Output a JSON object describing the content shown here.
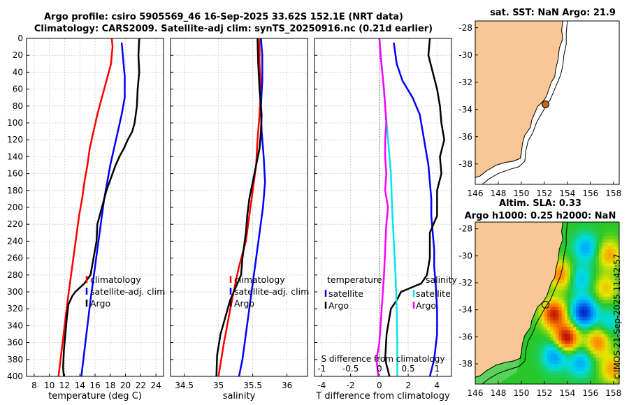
{
  "header": {
    "line1": "Argo profile: csiro 5905569_46 16-Sep-2025 33.62S 152.1E (NRT data)",
    "line2": "Climatology: CARS2009. Satellite-adj clim: synTS_20250916.nc (0.21d earlier)"
  },
  "stamp": "©IMOS 21-Sep-2025 11:42:57",
  "colors": {
    "argo": "#000000",
    "climatology": "#ff0000",
    "satellite": "#0000ff",
    "temperature_diff": "#ff00ff",
    "salinity_diff": "#00e5ee",
    "land": "#f9c796",
    "frame": "#000000"
  },
  "chart_data": [
    {
      "type": "line",
      "title": "",
      "xlabel": "temperature (deg C)",
      "ylabel": "",
      "xlim": [
        7,
        25
      ],
      "ylim": [
        0,
        400
      ],
      "xticks": [
        "8",
        "10",
        "12",
        "14",
        "16",
        "18",
        "20",
        "22",
        "24"
      ],
      "yticks": [
        "0",
        "20",
        "40",
        "60",
        "80",
        "100",
        "120",
        "140",
        "160",
        "180",
        "200",
        "220",
        "240",
        "260",
        "280",
        "300",
        "320",
        "340",
        "360",
        "380",
        "400"
      ],
      "legend": [
        "climatology",
        "satellite-adj. clim",
        "Argo"
      ],
      "series": [
        {
          "name": "climatology",
          "color": "#ff0000",
          "points": [
            [
              18.2,
              0
            ],
            [
              18.3,
              10
            ],
            [
              18.1,
              30
            ],
            [
              17.5,
              50
            ],
            [
              16.9,
              70
            ],
            [
              16.3,
              90
            ],
            [
              15.8,
              110
            ],
            [
              15.3,
              130
            ],
            [
              15.0,
              150
            ],
            [
              14.6,
              170
            ],
            [
              14.3,
              190
            ],
            [
              13.9,
              210
            ],
            [
              13.6,
              230
            ],
            [
              13.3,
              250
            ],
            [
              13.0,
              270
            ],
            [
              12.7,
              290
            ],
            [
              12.4,
              310
            ],
            [
              12.0,
              340
            ],
            [
              11.6,
              370
            ],
            [
              11.2,
              400
            ]
          ]
        },
        {
          "name": "satellite-adj. clim",
          "color": "#0000ff",
          "points": [
            [
              19.5,
              5
            ],
            [
              19.7,
              25
            ],
            [
              19.9,
              45
            ],
            [
              19.9,
              70
            ],
            [
              19.5,
              90
            ],
            [
              19.0,
              110
            ],
            [
              18.5,
              130
            ],
            [
              18.0,
              150
            ],
            [
              17.6,
              170
            ],
            [
              17.2,
              190
            ],
            [
              16.9,
              210
            ],
            [
              16.6,
              230
            ],
            [
              16.3,
              250
            ],
            [
              16.0,
              270
            ],
            [
              15.7,
              290
            ],
            [
              15.4,
              310
            ],
            [
              15.0,
              340
            ],
            [
              14.6,
              370
            ],
            [
              14.2,
              400
            ]
          ]
        },
        {
          "name": "Argo",
          "color": "#000000",
          "points": [
            [
              21.8,
              0
            ],
            [
              21.7,
              20
            ],
            [
              21.8,
              40
            ],
            [
              21.6,
              60
            ],
            [
              21.5,
              80
            ],
            [
              21.2,
              100
            ],
            [
              20.9,
              110
            ],
            [
              20.3,
              120
            ],
            [
              19.8,
              130
            ],
            [
              19.2,
              140
            ],
            [
              18.7,
              150
            ],
            [
              18.3,
              160
            ],
            [
              17.9,
              170
            ],
            [
              17.5,
              180
            ],
            [
              17.2,
              190
            ],
            [
              16.9,
              200
            ],
            [
              16.6,
              210
            ],
            [
              16.3,
              220
            ],
            [
              16.2,
              240
            ],
            [
              15.8,
              260
            ],
            [
              15.4,
              280
            ],
            [
              14.6,
              290
            ],
            [
              13.4,
              300
            ],
            [
              13.0,
              305
            ],
            [
              12.5,
              315
            ],
            [
              12.3,
              330
            ],
            [
              12.1,
              350
            ],
            [
              11.9,
              370
            ],
            [
              11.8,
              390
            ],
            [
              11.9,
              400
            ]
          ]
        }
      ]
    },
    {
      "type": "line",
      "xlabel": "salinity",
      "xlim": [
        34.3,
        36.3
      ],
      "ylim": [
        0,
        400
      ],
      "xticks": [
        "34.5",
        "35",
        "35.5",
        "36"
      ],
      "legend": [
        "climatology",
        "satellite-adj. clim",
        "Argo"
      ],
      "series": [
        {
          "name": "climatology",
          "color": "#ff0000",
          "points": [
            [
              35.6,
              0
            ],
            [
              35.6,
              30
            ],
            [
              35.62,
              60
            ],
            [
              35.6,
              90
            ],
            [
              35.57,
              120
            ],
            [
              35.55,
              150
            ],
            [
              35.5,
              180
            ],
            [
              35.45,
              210
            ],
            [
              35.4,
              240
            ],
            [
              35.3,
              270
            ],
            [
              35.22,
              300
            ],
            [
              35.15,
              330
            ],
            [
              35.08,
              360
            ],
            [
              35.02,
              390
            ],
            [
              35.0,
              400
            ]
          ]
        },
        {
          "name": "satellite-adj. clim",
          "color": "#0000ff",
          "points": [
            [
              35.62,
              0
            ],
            [
              35.64,
              20
            ],
            [
              35.64,
              50
            ],
            [
              35.62,
              80
            ],
            [
              35.63,
              110
            ],
            [
              35.66,
              140
            ],
            [
              35.68,
              170
            ],
            [
              35.65,
              200
            ],
            [
              35.6,
              230
            ],
            [
              35.55,
              260
            ],
            [
              35.5,
              290
            ],
            [
              35.45,
              320
            ],
            [
              35.4,
              350
            ],
            [
              35.35,
              380
            ],
            [
              35.3,
              400
            ]
          ]
        },
        {
          "name": "Argo",
          "color": "#000000",
          "points": [
            [
              35.57,
              0
            ],
            [
              35.58,
              30
            ],
            [
              35.6,
              60
            ],
            [
              35.63,
              90
            ],
            [
              35.62,
              110
            ],
            [
              35.6,
              130
            ],
            [
              35.55,
              150
            ],
            [
              35.5,
              170
            ],
            [
              35.45,
              190
            ],
            [
              35.42,
              210
            ],
            [
              35.4,
              230
            ],
            [
              35.35,
              260
            ],
            [
              35.33,
              280
            ],
            [
              35.25,
              295
            ],
            [
              35.17,
              310
            ],
            [
              35.1,
              330
            ],
            [
              35.03,
              350
            ],
            [
              34.98,
              375
            ],
            [
              34.97,
              400
            ]
          ]
        }
      ]
    },
    {
      "type": "line",
      "xlabel": "T difference from climatology",
      "xlabel_top": "S difference from climatology",
      "xlim": [
        -4.5,
        5
      ],
      "ylim": [
        0,
        400
      ],
      "xticks": [
        "-4",
        "-2",
        "0",
        "2",
        "4"
      ],
      "xticks_top": [
        "-1",
        "-0.5",
        "0",
        "0.5",
        "1"
      ],
      "legend_temperature": {
        "title": "temperature",
        "items": [
          "satellite",
          "Argo"
        ]
      },
      "legend_salinity": {
        "title": "salinity",
        "items": [
          "satellite",
          "Argo"
        ]
      },
      "series": [
        {
          "name": "temperature satellite",
          "color": "#0000ff",
          "points": [
            [
              1.0,
              5
            ],
            [
              1.2,
              30
            ],
            [
              1.6,
              50
            ],
            [
              2.3,
              70
            ],
            [
              2.8,
              90
            ],
            [
              3.0,
              110
            ],
            [
              3.2,
              130
            ],
            [
              3.4,
              150
            ],
            [
              3.5,
              170
            ],
            [
              3.6,
              190
            ],
            [
              3.6,
              210
            ],
            [
              3.7,
              230
            ],
            [
              3.8,
              250
            ],
            [
              3.8,
              270
            ],
            [
              3.9,
              290
            ],
            [
              4.0,
              320
            ],
            [
              4.0,
              350
            ],
            [
              3.8,
              380
            ],
            [
              3.5,
              400
            ]
          ]
        },
        {
          "name": "temperature Argo",
          "color": "#000000",
          "points": [
            [
              3.5,
              0
            ],
            [
              3.4,
              20
            ],
            [
              3.7,
              40
            ],
            [
              4.0,
              60
            ],
            [
              4.2,
              80
            ],
            [
              4.3,
              100
            ],
            [
              4.5,
              120
            ],
            [
              4.2,
              140
            ],
            [
              4.3,
              160
            ],
            [
              4.0,
              180
            ],
            [
              4.0,
              200
            ],
            [
              4.0,
              210
            ],
            [
              3.5,
              230
            ],
            [
              3.5,
              260
            ],
            [
              3.3,
              280
            ],
            [
              2.9,
              290
            ],
            [
              1.5,
              300
            ],
            [
              1.2,
              310
            ],
            [
              0.8,
              320
            ],
            [
              0.5,
              350
            ],
            [
              0.4,
              380
            ],
            [
              0.7,
              400
            ]
          ]
        },
        {
          "name": "salinity satellite",
          "color": "#00e5ee",
          "points": [
            [
              0.0,
              0
            ],
            [
              0.05,
              40
            ],
            [
              0.1,
              80
            ],
            [
              0.15,
              120
            ],
            [
              0.2,
              160
            ],
            [
              0.22,
              200
            ],
            [
              0.25,
              240
            ],
            [
              0.28,
              280
            ],
            [
              0.3,
              320
            ],
            [
              0.31,
              360
            ],
            [
              0.31,
              400
            ]
          ]
        },
        {
          "name": "salinity Argo",
          "color": "#ff00ff",
          "points": [
            [
              0.0,
              0
            ],
            [
              0.02,
              20
            ],
            [
              0.05,
              40
            ],
            [
              0.08,
              60
            ],
            [
              0.1,
              80
            ],
            [
              0.12,
              100
            ],
            [
              0.1,
              120
            ],
            [
              0.1,
              140
            ],
            [
              0.12,
              160
            ],
            [
              0.1,
              180
            ],
            [
              0.15,
              200
            ],
            [
              0.12,
              220
            ],
            [
              0.1,
              250
            ],
            [
              0.08,
              280
            ],
            [
              0.05,
              310
            ],
            [
              0.02,
              340
            ],
            [
              0.0,
              360
            ],
            [
              -0.05,
              380
            ],
            [
              -0.02,
              400
            ]
          ]
        }
      ]
    },
    {
      "type": "heatmap",
      "title": "sat. SST: NaN Argo: 21.9",
      "xlim": [
        146,
        158.5
      ],
      "ylim": [
        -39.5,
        -27.5
      ],
      "xticks": [
        "146",
        "148",
        "150",
        "152",
        "154",
        "156",
        "158"
      ],
      "yticks": [
        "-28",
        "-30",
        "-32",
        "-34",
        "-36",
        "-38"
      ],
      "marker": {
        "lon": 152.1,
        "lat": -33.62,
        "filled": true
      }
    },
    {
      "type": "heatmap",
      "title_line1": "Altim. SLA: 0.33",
      "title_line2": "Argo h1000: 0.25 h2000: NaN",
      "xlim": [
        146,
        158.5
      ],
      "ylim": [
        -39.5,
        -27.5
      ],
      "xticks": [
        "146",
        "148",
        "150",
        "152",
        "154",
        "156",
        "158"
      ],
      "yticks": [
        "-28",
        "-30",
        "-32",
        "-34",
        "-36",
        "-38"
      ],
      "marker": {
        "lon": 152.1,
        "lat": -33.62,
        "filled": false
      },
      "sla_blobs": [
        {
          "lon": 155.5,
          "lat": -29.5,
          "v": -0.5
        },
        {
          "lon": 157.5,
          "lat": -30.0,
          "v": 0.5
        },
        {
          "lon": 153.3,
          "lat": -31.5,
          "v": 0.6
        },
        {
          "lon": 155.0,
          "lat": -31.8,
          "v": -0.4
        },
        {
          "lon": 157.2,
          "lat": -32.5,
          "v": 0.4
        },
        {
          "lon": 152.7,
          "lat": -34.4,
          "v": 0.9
        },
        {
          "lon": 155.3,
          "lat": -34.3,
          "v": -1.0
        },
        {
          "lon": 153.8,
          "lat": -36.2,
          "v": 1.0
        },
        {
          "lon": 156.5,
          "lat": -36.5,
          "v": 0.6
        },
        {
          "lon": 152.8,
          "lat": -37.5,
          "v": -0.6
        },
        {
          "lon": 155.0,
          "lat": -38.0,
          "v": -0.5
        },
        {
          "lon": 157.8,
          "lat": -38.5,
          "v": 0.5
        },
        {
          "lon": 157.5,
          "lat": -35.0,
          "v": -0.3
        }
      ]
    }
  ]
}
